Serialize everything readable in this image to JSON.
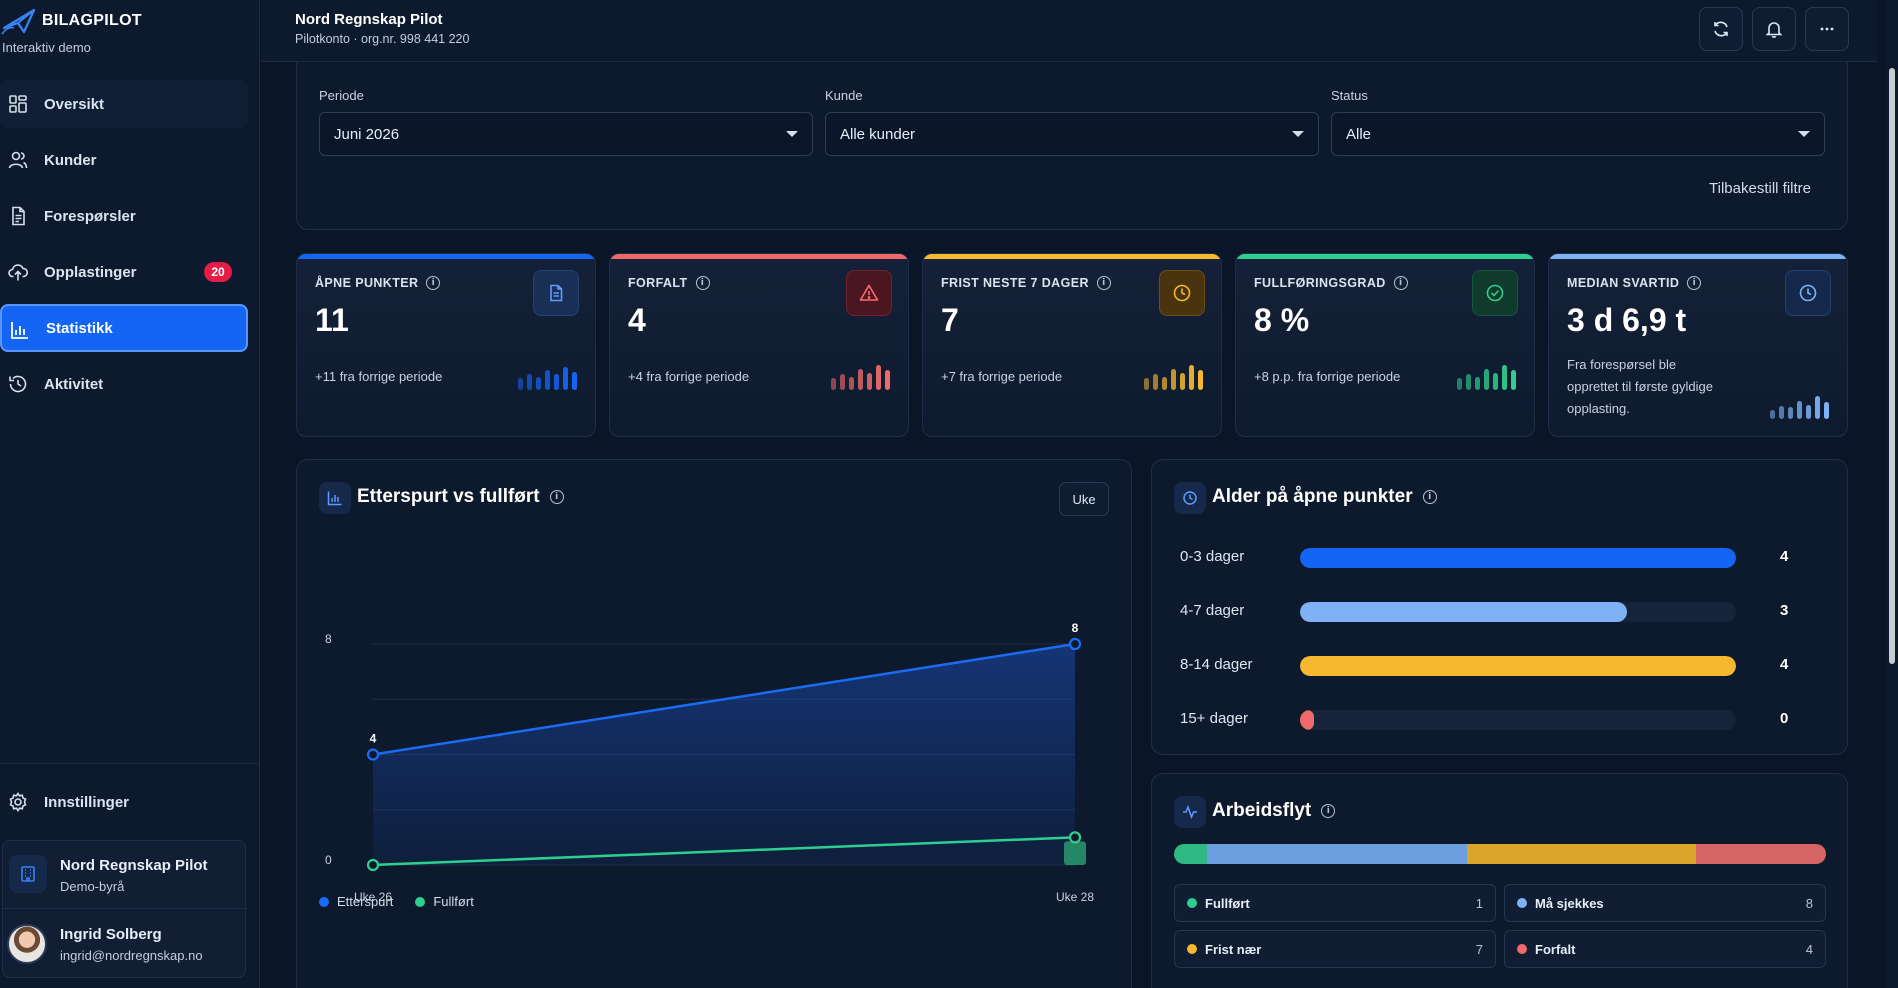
{
  "brand": {
    "name": "BILAGPILOT",
    "subtitle": "Interaktiv demo",
    "logo_icon": "paper-plane-logo-icon"
  },
  "sidebar": {
    "items": [
      {
        "label": "Oversikt",
        "icon": "grid-icon"
      },
      {
        "label": "Kunder",
        "icon": "users-icon"
      },
      {
        "label": "Forespørsler",
        "icon": "document-icon"
      },
      {
        "label": "Opplastinger",
        "icon": "cloud-upload-icon",
        "badge": "20"
      },
      {
        "label": "Statistikk",
        "icon": "bar-chart-icon",
        "active": true
      },
      {
        "label": "Aktivitet",
        "icon": "history-icon"
      }
    ],
    "settings_label": "Innstillinger",
    "org": {
      "name": "Nord Regnskap Pilot",
      "type": "Demo-byrå"
    },
    "user": {
      "name": "Ingrid Solberg",
      "email": "ingrid@nordregnskap.no"
    }
  },
  "header": {
    "title": "Nord Regnskap Pilot",
    "subtitle": "Pilotkonto · org.nr. 998 441 220",
    "buttons": [
      "refresh-icon",
      "bell-icon",
      "more-icon"
    ]
  },
  "filters": {
    "periode": {
      "label": "Periode",
      "value": "Juni 2026"
    },
    "kunde": {
      "label": "Kunde",
      "value": "Alle kunder"
    },
    "status": {
      "label": "Status",
      "value": "Alle"
    },
    "reset_label": "Tilbakestill filtre"
  },
  "kpis": [
    {
      "label": "ÅPNE PUNKTER",
      "value": "11",
      "sub": "+11 fra forrige periode",
      "color": "#1565f5",
      "icon": "document-icon",
      "sparks": [
        0.45,
        0.6,
        0.5,
        0.75,
        0.6,
        0.9,
        0.7
      ]
    },
    {
      "label": "FORFALT",
      "value": "4",
      "sub": "+4 fra forrige periode",
      "color": "#f06a6a",
      "icon": "warning-icon",
      "sparks": [
        0.45,
        0.6,
        0.5,
        0.8,
        0.65,
        0.95,
        0.75
      ]
    },
    {
      "label": "FRIST NESTE 7 DAGER",
      "value": "7",
      "sub": "+7 fra forrige periode",
      "color": "#f5b82e",
      "icon": "clock-icon",
      "sparks": [
        0.45,
        0.6,
        0.5,
        0.8,
        0.65,
        0.95,
        0.75
      ]
    },
    {
      "label": "FULLFØRINGSGRAD",
      "value": "8 %",
      "sub": "+8 p.p. fra forrige periode",
      "color": "#2fce8e",
      "icon": "check-circle-icon",
      "sparks": [
        0.45,
        0.6,
        0.5,
        0.8,
        0.65,
        0.95,
        0.75
      ]
    },
    {
      "label": "MEDIAN SVARTID",
      "value": "3 d 6,9 t",
      "sub": "Fra forespørsel ble opprettet til første gyldige opplasting.",
      "color": "#7fb2f5",
      "icon": "clock-icon",
      "sparks": [
        0.35,
        0.5,
        0.45,
        0.7,
        0.55,
        0.9,
        0.65
      ]
    }
  ],
  "trend_chart": {
    "title": "Etterspurt vs fullført",
    "toggle_label": "Uke",
    "chart_data": {
      "type": "line",
      "x": [
        "Uke 26",
        "Uke 28"
      ],
      "series": [
        {
          "name": "Etterspurt",
          "values": [
            4,
            8
          ],
          "color": "#1a6cf5",
          "point_labels": [
            "4",
            "8"
          ]
        },
        {
          "name": "Fullført",
          "values": [
            0,
            1
          ],
          "color": "#2fce8e"
        }
      ],
      "y_ticks": [
        "0",
        "8"
      ],
      "ylim": [
        0,
        8
      ],
      "grid": true,
      "legend": "bottom-left"
    }
  },
  "age_chart": {
    "title": "Alder på åpne punkter",
    "chart_data": {
      "type": "bar",
      "orientation": "horizontal",
      "categories": [
        "0-3 dager",
        "4-7 dager",
        "8-14 dager",
        "15+ dager"
      ],
      "values": [
        4,
        3,
        4,
        0
      ],
      "labels": [
        "4",
        "3",
        "4",
        "0"
      ],
      "colors": [
        "#1565f5",
        "#7fb2f5",
        "#f5b82e",
        "#f06a6a"
      ],
      "xlim": [
        0,
        4
      ]
    }
  },
  "workflow": {
    "title": "Arbeidsflyt",
    "chart_data": {
      "type": "bar",
      "orientation": "stacked-horizontal",
      "categories": [
        "Fullført",
        "Må sjekkes",
        "Frist nær",
        "Forfalt"
      ],
      "values": [
        1,
        8,
        7,
        4
      ],
      "labels": [
        "1",
        "8",
        "7",
        "4"
      ],
      "colors": [
        "#2fb882",
        "#6b9fdf",
        "#d9a62b",
        "#d56464"
      ]
    }
  }
}
